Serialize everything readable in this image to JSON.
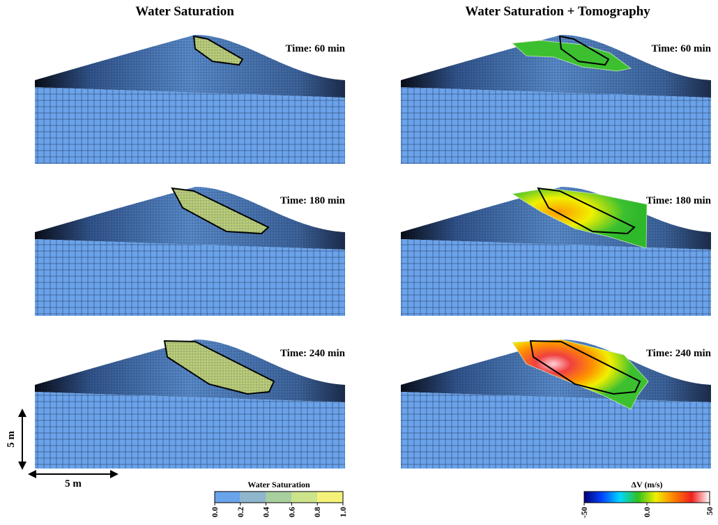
{
  "columns": [
    {
      "title": "Water Saturation"
    },
    {
      "title": "Water Saturation + Tomography"
    }
  ],
  "rows": [
    {
      "time": "Time: 60 min"
    },
    {
      "time": "Time: 180 min"
    },
    {
      "time": "Time: 240 min"
    }
  ],
  "scale": {
    "vertical": "5 m",
    "horizontal": "5 m"
  },
  "colorbars": [
    {
      "title": "Water Saturation",
      "colors": [
        "#6aa3ea",
        "#8fb6cc",
        "#a8cf9e",
        "#cde48a",
        "#f5f27a"
      ],
      "ticks": [
        {
          "value": 0,
          "label": "0.0"
        },
        {
          "value": 0.2,
          "label": "0.2"
        },
        {
          "value": 0.4,
          "label": "0.4"
        },
        {
          "value": 0.6,
          "label": "0.6"
        },
        {
          "value": 0.8,
          "label": "0.8"
        },
        {
          "value": 1,
          "label": "1.0"
        }
      ]
    },
    {
      "title": "ΔV (m/s)",
      "colors": [
        "#00007a",
        "#0044ff",
        "#00d8ff",
        "#30c020",
        "#f0f000",
        "#ff8000",
        "#f02020",
        "#ffffff"
      ],
      "ticks": [
        -50,
        {
          "value": 0,
          "label": "0.0"
        },
        50
      ]
    }
  ]
}
